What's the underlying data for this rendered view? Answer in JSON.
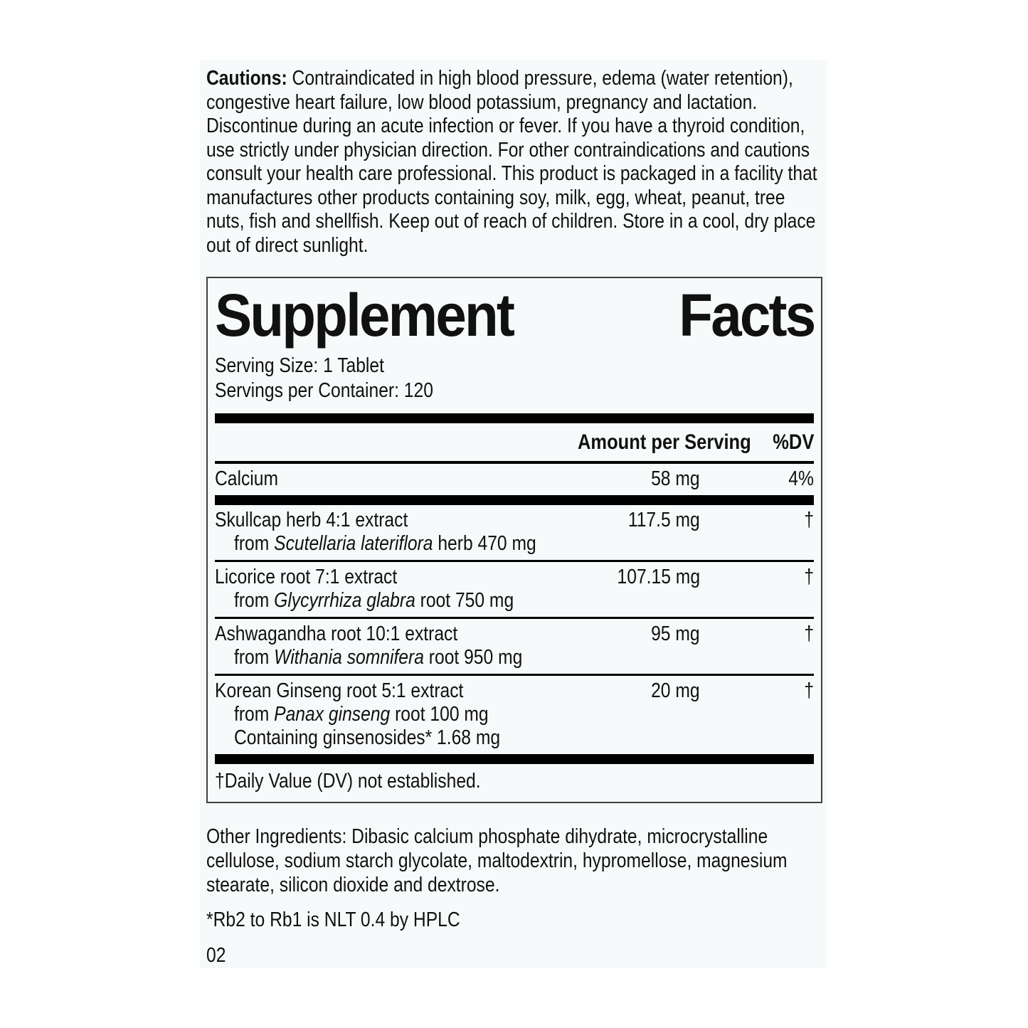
{
  "colors": {
    "page_background": "#ffffff",
    "panel_background": "#f7fafb",
    "text": "#111111",
    "bar": "#000000",
    "box_border": "#404040"
  },
  "cautions": {
    "label": "Cautions:",
    "text": "Contraindicated in high blood pressure, edema (water retention), congestive heart failure, low blood potassium, pregnancy and lactation. Discontinue during an acute infection or fever. If you have a thyroid condition, use strictly under physician direction. For other contraindications and cautions consult your health care professional. This product is packaged in a facility that manufactures other products containing soy, milk, egg, wheat, peanut, tree nuts, fish and shellfish. Keep out of reach of children. Store in a cool, dry place out of direct sunlight."
  },
  "supplement_facts": {
    "title_word1": "Supplement",
    "title_word2": "Facts",
    "serving_size": "Serving Size: 1 Tablet",
    "servings_per_container": "Servings per Container: 120",
    "columns": {
      "amount": "Amount per Serving",
      "dv": "%DV"
    },
    "rows": [
      {
        "name": "Calcium",
        "amount": "58 mg",
        "dv": "4%"
      },
      {
        "name": "Skullcap herb 4:1 extract",
        "amount": "117.5 mg",
        "dv": "†",
        "from_prefix": "from ",
        "species": "Scutellaria lateriflora",
        "from_suffix": " herb 470 mg"
      },
      {
        "name": "Licorice root 7:1 extract",
        "amount": "107.15 mg",
        "dv": "†",
        "from_prefix": "from ",
        "species": "Glycyrrhiza glabra",
        "from_suffix": " root 750 mg"
      },
      {
        "name": "Ashwagandha root 10:1 extract",
        "amount": "95 mg",
        "dv": "†",
        "from_prefix": "from ",
        "species": "Withania somnifera",
        "from_suffix": " root 950 mg"
      },
      {
        "name": "Korean Ginseng root 5:1 extract",
        "amount": "20 mg",
        "dv": "†",
        "from_prefix": "from ",
        "species": "Panax ginseng",
        "from_suffix": " root 100 mg",
        "extra_line": "Containing ginsenosides* 1.68 mg"
      }
    ],
    "footnote": "†Daily Value (DV) not established."
  },
  "other_ingredients": "Other Ingredients: Dibasic calcium phosphate dihydrate, microcrystalline cellulose, sodium starch glycolate, maltodextrin, hypromellose, magnesium stearate, silicon dioxide and dextrose.",
  "hplc_note": "*Rb2 to Rb1 is NLT 0.4 by HPLC",
  "page_number": "02"
}
